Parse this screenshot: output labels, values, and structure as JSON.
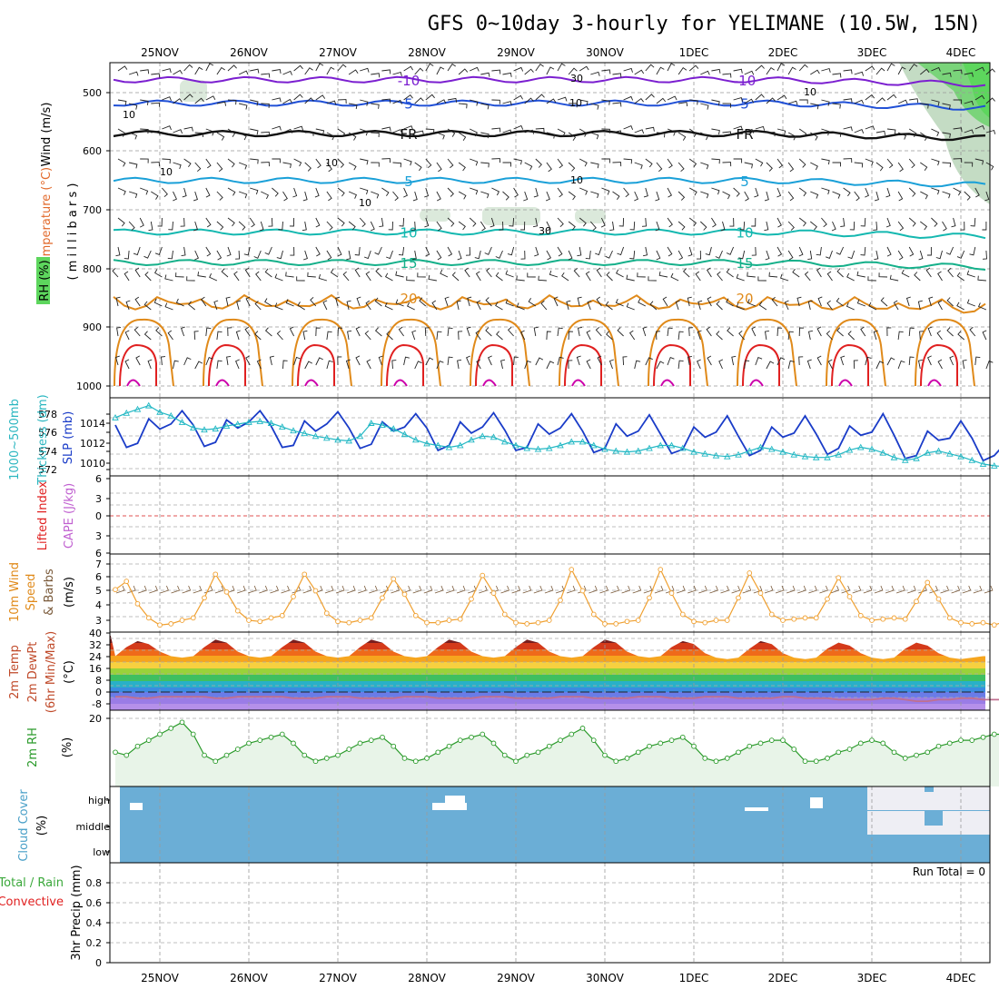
{
  "title": "GFS 0~10day 3-hourly for YELIMANE (10.5W, 15N)",
  "dates": [
    "25NOV",
    "26NOV",
    "27NOV",
    "28NOV",
    "29NOV",
    "30NOV",
    "1DEC",
    "2DEC",
    "3DEC",
    "4DEC"
  ],
  "colors": {
    "purple": "#7b1fd0",
    "blue": "#1f4fd6",
    "cyan": "#1aa0d8",
    "teal": "#14b8b0",
    "green15": "#15b08a",
    "orange": "#e08a1a",
    "red": "#e02020",
    "magenta": "#cc00aa",
    "slp": "#1a3cc8",
    "thick": "#22b8c4",
    "wind10": "#f0a030",
    "rh2m": "#2a9a2a",
    "cloud": "#6baed6",
    "rhShade": "#5dd65d"
  },
  "labels": {
    "upper_wind": "Wind (m/s)",
    "upper_temp": "Temperature (°C)",
    "upper_rh": "RH (%)",
    "upper_mb": "( m i l l i b a r s )",
    "thick_a": "1000~500mb",
    "thick_b": "Thickness (dm)",
    "slp": "SLP (mb)",
    "li": "Lifted Index",
    "cape": "CAPE (J/kg)",
    "wind10_a": "10m Wind",
    "wind10_b": "Speed",
    "wind10_c": "& Barbs",
    "wind10_unit": "(m/s)",
    "t2m_a": "2m Temp",
    "t2m_b": "2m DewPt",
    "t2m_c": "(6hr Min/Max)",
    "t2m_unit": "(°C)",
    "rh2m": "2m RH",
    "rh2m_unit": "(%)",
    "cloud": "Cloud Cover",
    "cloud_unit": "(%)",
    "precip_a": "Total / Rain",
    "precip_b": "Convective",
    "precip_c": "3hr Precip (mm)",
    "run_total": "Run Total = 0"
  },
  "chart_data": [
    {
      "panel": "upper-air",
      "type": "line",
      "ylabel": "millibars",
      "y_ticks": [
        "500",
        "600",
        "700",
        "800",
        "900",
        "1000"
      ],
      "isotherms": [
        {
          "value": -10,
          "label": "-10",
          "mb": 478,
          "color": "purple"
        },
        {
          "value": -5,
          "label": "5",
          "mb": 518,
          "color": "blue"
        },
        {
          "value": 0,
          "label": "FR",
          "mb": 570,
          "color": "black"
        },
        {
          "value": 5,
          "label": "5",
          "mb": 650,
          "color": "cyan"
        },
        {
          "value": 10,
          "label": "10",
          "mb": 738,
          "color": "teal"
        },
        {
          "value": 15,
          "label": "15",
          "mb": 790,
          "color": "green15"
        },
        {
          "value": 20,
          "label": "20",
          "mb": 850,
          "color": "orange"
        }
      ],
      "rh_contours": [
        "10",
        "30"
      ]
    },
    {
      "panel": "thickness-slp",
      "type": "line",
      "y_ticks_left": [
        "572",
        "574",
        "576",
        "578"
      ],
      "y_ticks_right": [
        "1010",
        "1012",
        "1014"
      ],
      "series": [
        {
          "name": "SLP (mb)",
          "color": "slp",
          "values": [
            1013.2,
            1011.0,
            1011.4,
            1013.8,
            1012.8,
            1013.3,
            1014.6,
            1013.2,
            1011.1,
            1011.5,
            1013.7,
            1012.9,
            1013.5,
            1014.6,
            1013.1,
            1011.0,
            1011.2,
            1013.6,
            1012.6,
            1013.3,
            1014.5,
            1012.9,
            1010.9,
            1011.3,
            1013.5,
            1012.6,
            1013.0,
            1014.3,
            1012.9,
            1010.7,
            1011.2,
            1013.5,
            1012.4,
            1013.0,
            1014.4,
            1012.7,
            1010.7,
            1011.0,
            1013.3,
            1012.3,
            1012.9,
            1014.3,
            1012.6,
            1010.5,
            1010.9,
            1013.3,
            1012.1,
            1012.6,
            1014.2,
            1012.3,
            1010.4,
            1010.8,
            1013.0,
            1012.0,
            1012.5,
            1014.1,
            1012.1,
            1010.2,
            1010.7,
            1013.0,
            1012.0,
            1012.4,
            1014.1,
            1012.3,
            1010.3,
            1010.9,
            1013.1,
            1012.2,
            1012.5,
            1014.3,
            1012.2,
            1009.9,
            1010.2,
            1012.6,
            1011.7,
            1011.9,
            1013.6,
            1011.9,
            1009.7,
            1010.2,
            1011.4
          ]
        },
        {
          "name": "1000~500mb Thickness (dm)",
          "color": "thick",
          "values": [
            577.6,
            578.1,
            578.5,
            578.9,
            578.2,
            577.8,
            577.1,
            576.5,
            576.3,
            576.4,
            576.7,
            576.9,
            577.1,
            577.2,
            577.0,
            576.6,
            576.2,
            575.9,
            575.6,
            575.4,
            575.2,
            575.1,
            575.6,
            577.0,
            576.8,
            576.4,
            575.8,
            575.2,
            574.8,
            574.6,
            574.4,
            574.6,
            575.2,
            575.6,
            575.5,
            575.0,
            574.6,
            574.3,
            574.2,
            574.3,
            574.6,
            575.0,
            575.0,
            574.6,
            574.2,
            574.0,
            573.9,
            574.0,
            574.3,
            574.6,
            574.6,
            574.3,
            573.9,
            573.7,
            573.5,
            573.4,
            573.6,
            574.0,
            574.4,
            574.2,
            573.9,
            573.6,
            573.4,
            573.3,
            573.3,
            573.6,
            574.1,
            574.4,
            574.2,
            573.8,
            573.3,
            573.0,
            573.2,
            573.8,
            574.0,
            573.7,
            573.4,
            573.0,
            572.6,
            572.4,
            572.3
          ]
        }
      ]
    },
    {
      "panel": "cape-li",
      "type": "line",
      "y_ticks": [
        "6",
        "3",
        "0",
        "3",
        "6"
      ],
      "series": [
        {
          "name": "Lifted Index",
          "values": []
        },
        {
          "name": "CAPE (J/kg)",
          "values": []
        }
      ]
    },
    {
      "panel": "wind10m",
      "type": "line",
      "ylabel": "(m/s)",
      "y_ticks": [
        "3",
        "4",
        "5",
        "6",
        "7"
      ],
      "series": [
        {
          "name": "10m Wind Speed",
          "color": "wind10",
          "values": [
            5.6,
            6.3,
            4.4,
            3.2,
            2.6,
            2.7,
            3.0,
            3.2,
            4.9,
            6.9,
            5.4,
            3.8,
            3.0,
            2.9,
            3.2,
            3.4,
            5.0,
            6.9,
            5.5,
            3.6,
            2.9,
            2.8,
            3.0,
            3.2,
            4.9,
            6.5,
            5.2,
            3.4,
            2.8,
            2.8,
            3.0,
            3.1,
            4.8,
            6.8,
            5.3,
            3.5,
            2.8,
            2.7,
            2.8,
            3.0,
            4.7,
            7.3,
            5.5,
            3.5,
            2.7,
            2.7,
            2.9,
            3.0,
            4.9,
            7.3,
            5.3,
            3.5,
            2.9,
            2.8,
            3.0,
            3.0,
            4.9,
            7.0,
            5.3,
            3.5,
            3.0,
            3.1,
            3.2,
            3.2,
            4.8,
            6.6,
            5.0,
            3.4,
            3.0,
            3.1,
            3.2,
            3.1,
            4.6,
            6.2,
            4.8,
            3.2,
            2.8,
            2.7,
            2.8,
            2.6,
            2.9
          ]
        }
      ]
    },
    {
      "panel": "temp2m",
      "type": "area",
      "ylabel": "(°C)",
      "y_ticks": [
        "40",
        "32",
        "24",
        "16",
        "8",
        "0",
        "-8"
      ],
      "series": [
        {
          "name": "2m Temp",
          "values": [
            24,
            30,
            34,
            32,
            27,
            24,
            23,
            24,
            30,
            35,
            33,
            27,
            24,
            23,
            24,
            30,
            35,
            33,
            27,
            24,
            23,
            24,
            30,
            35,
            33,
            27,
            24,
            23,
            24,
            30,
            35,
            33,
            27,
            24,
            23,
            24,
            30,
            35,
            33,
            27,
            24,
            23,
            24,
            30,
            35,
            33,
            27,
            24,
            23,
            24,
            30,
            34,
            32,
            26,
            23,
            22,
            23,
            29,
            34,
            32,
            26,
            23,
            22,
            23,
            29,
            33,
            31,
            26,
            23,
            22,
            23,
            29,
            33,
            31,
            26,
            23,
            22,
            23,
            24,
            24,
            23
          ]
        },
        {
          "name": "2m DewPt",
          "values": [
            -3,
            -3,
            -4,
            -4,
            -3,
            -3,
            -3,
            -3,
            -3,
            -4,
            -4,
            -3,
            -3,
            -3,
            -3,
            -3,
            -4,
            -4,
            -4,
            -3,
            -3,
            -3,
            -4,
            -4,
            -4,
            -4,
            -3,
            -3,
            -3,
            -4,
            -4,
            -4,
            -4,
            -3,
            -3,
            -3,
            -4,
            -4,
            -4,
            -4,
            -3,
            -3,
            -3,
            -4,
            -4,
            -4,
            -4,
            -3,
            -3,
            -3,
            -4,
            -4,
            -4,
            -3,
            -3,
            -3,
            -4,
            -4,
            -4,
            -4,
            -3,
            -3,
            -4,
            -4,
            -4,
            -5,
            -5,
            -5,
            -5,
            -4,
            -4,
            -5,
            -6,
            -6,
            -5,
            -5,
            -4,
            -4,
            -5,
            -5,
            -5
          ]
        }
      ]
    },
    {
      "panel": "rh2m",
      "type": "area",
      "ylabel": "(%)",
      "y_ticks": [
        "20"
      ],
      "series": [
        {
          "name": "2m RH",
          "color": "rh2m",
          "values": [
            9,
            8,
            11,
            13,
            15,
            17,
            19,
            15,
            8,
            6,
            8,
            10,
            12,
            13,
            14,
            15,
            12,
            8,
            6,
            7,
            8,
            10,
            12,
            13,
            14,
            11,
            7,
            6,
            7,
            9,
            11,
            13,
            14,
            15,
            12,
            8,
            6,
            8,
            9,
            11,
            13,
            15,
            17,
            13,
            8,
            6,
            7,
            9,
            11,
            12,
            13,
            14,
            11,
            7,
            6,
            7,
            9,
            11,
            12,
            13,
            13,
            10,
            6,
            6,
            7,
            9,
            10,
            12,
            13,
            12,
            9,
            7,
            8,
            9,
            11,
            12,
            13,
            13,
            14,
            15,
            15
          ]
        }
      ]
    },
    {
      "panel": "cloud",
      "type": "heatmap",
      "y_ticks": [
        "high",
        "middle",
        "low"
      ]
    },
    {
      "panel": "precip",
      "type": "bar",
      "ylabel": "3hr Precip (mm)",
      "y_ticks": [
        "0",
        "0.2",
        "0.4",
        "0.6",
        "0.8"
      ],
      "ylim": [
        0,
        1
      ],
      "series": [
        {
          "name": "Total / Rain",
          "values": []
        },
        {
          "name": "Convective",
          "values": []
        }
      ]
    }
  ]
}
